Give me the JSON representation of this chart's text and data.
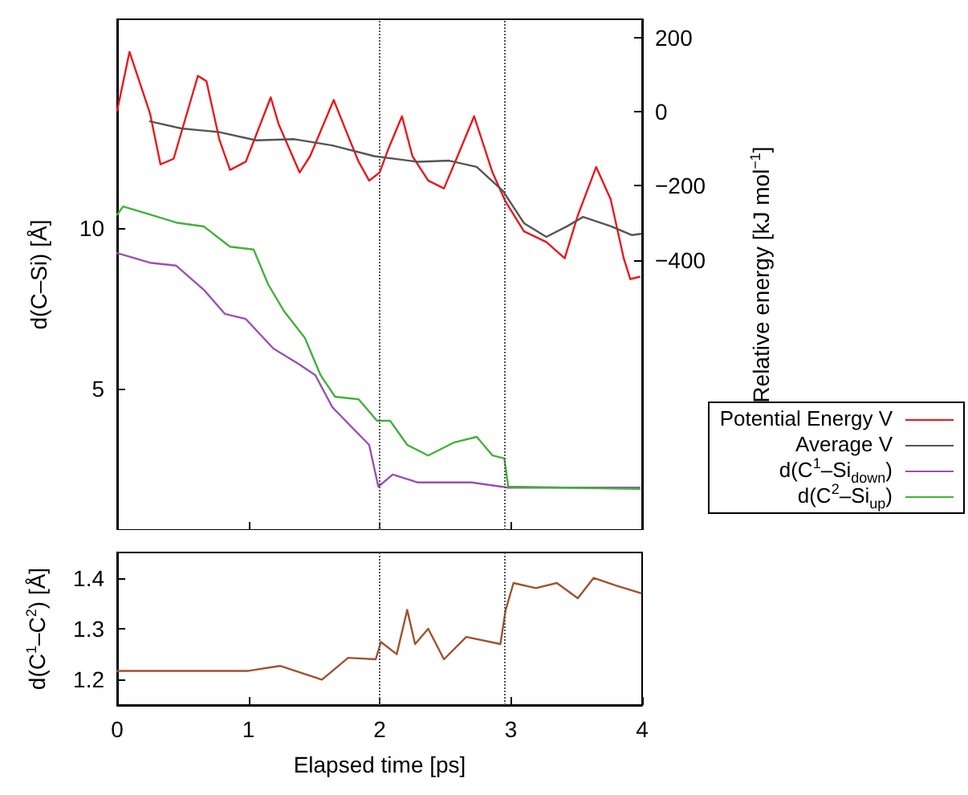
{
  "chart_data": [
    {
      "type": "line",
      "ylabel": "d(C–Si) [Å]",
      "y2label": "Relative energy [kJ mol$^{−1}$]",
      "xlim": [
        0,
        4
      ],
      "xticks": [
        0,
        1,
        2,
        3,
        4
      ],
      "ylim": [
        0.6,
        16.5
      ],
      "yticks": [
        5,
        10
      ],
      "y2lim": [
        -1130,
        250
      ],
      "y2ticks": [
        {
          "value": -400,
          "label": "−400"
        },
        {
          "value": -200,
          "label": "−200"
        },
        0,
        200
      ],
      "tick_labels": "y",
      "legend": "right",
      "grid": false,
      "marker": "none",
      "line_style": "solid",
      "ref_lines": [
        {
          "axis": "x",
          "value": 2,
          "color": "#555555",
          "line_style": "dotted"
        },
        {
          "axis": "x",
          "value": 2.95,
          "color": "#555555",
          "line_style": "dotted"
        }
      ],
      "series": [
        {
          "name": "Potential Energy V",
          "color": "#e8191e",
          "axis": "y2",
          "x": [
            0,
            0.094,
            0.25,
            0.33,
            0.43,
            0.615,
            0.68,
            0.78,
            0.86,
            0.98,
            1.17,
            1.23,
            1.39,
            1.47,
            1.65,
            1.74,
            1.84,
            1.92,
            2.0,
            2.06,
            2.17,
            2.25,
            2.37,
            2.49,
            2.61,
            2.72,
            2.86,
            2.96,
            3.1,
            3.27,
            3.41,
            3.51,
            3.65,
            3.76,
            3.86,
            3.91,
            3.98
          ],
          "values": [
            3,
            162,
            -4,
            -142,
            -127,
            97,
            83,
            -77,
            -157,
            -135,
            39,
            -33,
            -164,
            -120,
            32,
            -48,
            -135,
            -186,
            -164,
            -106,
            -12,
            -120,
            -186,
            -207,
            -106,
            -12,
            -164,
            -243,
            -323,
            -352,
            -396,
            -280,
            -149,
            -236,
            -396,
            -452,
            -446
          ]
        },
        {
          "name": "Average V",
          "color": "#555555",
          "axis": "y2",
          "x": [
            0.25,
            0.49,
            0.78,
            1.06,
            1.35,
            1.64,
            1.96,
            2.29,
            2.53,
            2.74,
            2.94,
            3.1,
            3.27,
            3.43,
            3.55,
            3.76,
            3.92,
            3.99
          ],
          "values": [
            -26,
            -45,
            -55,
            -77,
            -74,
            -91,
            -120,
            -135,
            -132,
            -149,
            -214,
            -301,
            -338,
            -309,
            -284,
            -309,
            -333,
            -330
          ]
        },
        {
          "name": "d(C$^{1}$–Si$_{down}$)",
          "color": "#9b4fb5",
          "x": [
            0,
            0.25,
            0.45,
            0.66,
            0.82,
            0.98,
            1.19,
            1.39,
            1.51,
            1.64,
            1.8,
            1.92,
            1.99,
            2.1,
            2.29,
            2.7,
            2.98,
            3.98
          ],
          "values": [
            9.22,
            8.92,
            8.83,
            8.08,
            7.33,
            7.17,
            6.25,
            5.75,
            5.42,
            4.42,
            3.75,
            3.25,
            1.95,
            2.33,
            2.08,
            2.08,
            1.92,
            1.92
          ]
        },
        {
          "name": "d(C$^{2}$–Si$_{up}$)",
          "color": "#44b03c",
          "x": [
            0,
            0.045,
            0.25,
            0.45,
            0.66,
            0.86,
            1.04,
            1.15,
            1.27,
            1.43,
            1.55,
            1.66,
            1.84,
            1.98,
            2.08,
            2.21,
            2.37,
            2.57,
            2.74,
            2.86,
            2.95,
            2.98,
            3.98
          ],
          "values": [
            10.42,
            10.67,
            10.42,
            10.17,
            10.05,
            9.42,
            9.33,
            8.25,
            7.42,
            6.58,
            5.42,
            4.75,
            4.67,
            4.0,
            4.0,
            3.25,
            2.92,
            3.33,
            3.5,
            2.92,
            2.83,
            1.95,
            1.88
          ]
        }
      ]
    },
    {
      "type": "line",
      "xlabel": "Elapsed time [ps]",
      "ylabel": "d(C$^{1}$–C$^{2}$) [Å]",
      "xlim": [
        0,
        4
      ],
      "xticks": [
        0,
        1,
        2,
        3,
        4
      ],
      "ylim": [
        1.15,
        1.45
      ],
      "yticks": [
        1.2,
        1.3,
        1.4
      ],
      "legend": false,
      "grid": false,
      "marker": "none",
      "line_style": "solid",
      "ref_lines": [
        {
          "axis": "x",
          "value": 2,
          "color": "#555555",
          "line_style": "dotted"
        },
        {
          "axis": "x",
          "value": 2.95,
          "color": "#555555",
          "line_style": "dotted"
        }
      ],
      "series": [
        {
          "color": "#a0522d",
          "x": [
            0,
            0.54,
            0.99,
            1.24,
            1.56,
            1.76,
            1.97,
            2.01,
            2.13,
            2.21,
            2.27,
            2.37,
            2.49,
            2.66,
            2.92,
            2.96,
            3.02,
            3.19,
            3.35,
            3.51,
            3.63,
            3.8,
            3.99
          ],
          "values": [
            1.217,
            1.217,
            1.217,
            1.227,
            1.2,
            1.243,
            1.24,
            1.274,
            1.25,
            1.337,
            1.27,
            1.3,
            1.24,
            1.284,
            1.27,
            1.337,
            1.39,
            1.38,
            1.39,
            1.36,
            1.4,
            1.385,
            1.37
          ]
        }
      ]
    }
  ]
}
